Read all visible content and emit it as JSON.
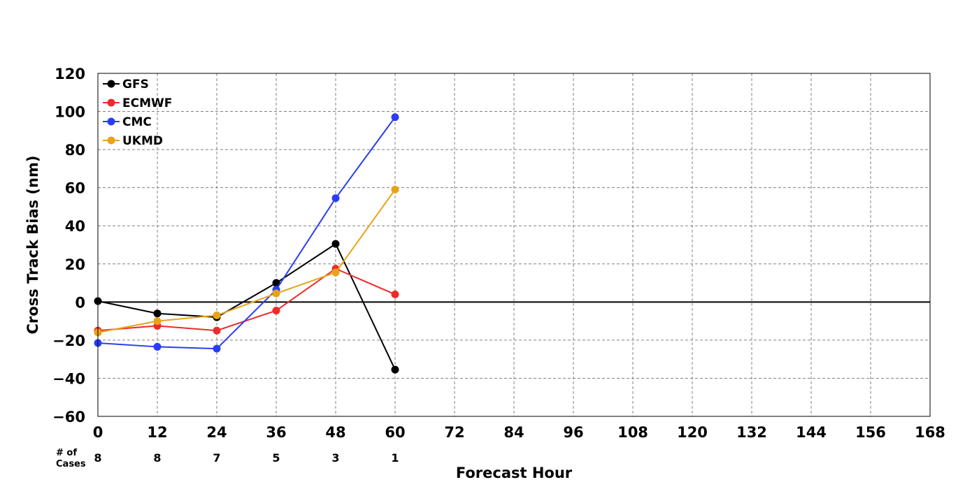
{
  "chart_data": {
    "type": "line",
    "title": "",
    "xlabel": "Forecast Hour",
    "ylabel": "Cross Track Bias (nm)",
    "xlim": [
      0,
      168
    ],
    "ylim": [
      -60,
      120
    ],
    "xticks": [
      0,
      12,
      24,
      36,
      48,
      60,
      72,
      84,
      96,
      108,
      120,
      132,
      144,
      156,
      168
    ],
    "yticks": [
      -60,
      -40,
      -20,
      0,
      20,
      40,
      60,
      80,
      100,
      120
    ],
    "grid": true,
    "legend_position": "top-left",
    "cases_label": "# of Cases",
    "cases_label_lines": [
      "# of",
      "Cases"
    ],
    "cases": [
      {
        "x": 0,
        "n": "8"
      },
      {
        "x": 12,
        "n": "8"
      },
      {
        "x": 24,
        "n": "7"
      },
      {
        "x": 36,
        "n": "5"
      },
      {
        "x": 48,
        "n": "3"
      },
      {
        "x": 60,
        "n": "1"
      }
    ],
    "x": [
      0,
      12,
      24,
      36,
      48,
      60
    ],
    "series": [
      {
        "name": "GFS",
        "color": "#000000",
        "values": [
          0.5,
          -6,
          -8,
          10,
          30.5,
          -35.5
        ]
      },
      {
        "name": "ECMWF",
        "color": "#ee2a2a",
        "values": [
          -15,
          -12.5,
          -15,
          -4.5,
          17.5,
          4
        ]
      },
      {
        "name": "CMC",
        "color": "#2a3df5",
        "values": [
          -21.5,
          -23.5,
          -24.5,
          6.5,
          54.5,
          97
        ]
      },
      {
        "name": "UKMD",
        "color": "#e8a317",
        "values": [
          -16,
          -10,
          -7,
          4.5,
          15.5,
          59
        ]
      }
    ]
  }
}
